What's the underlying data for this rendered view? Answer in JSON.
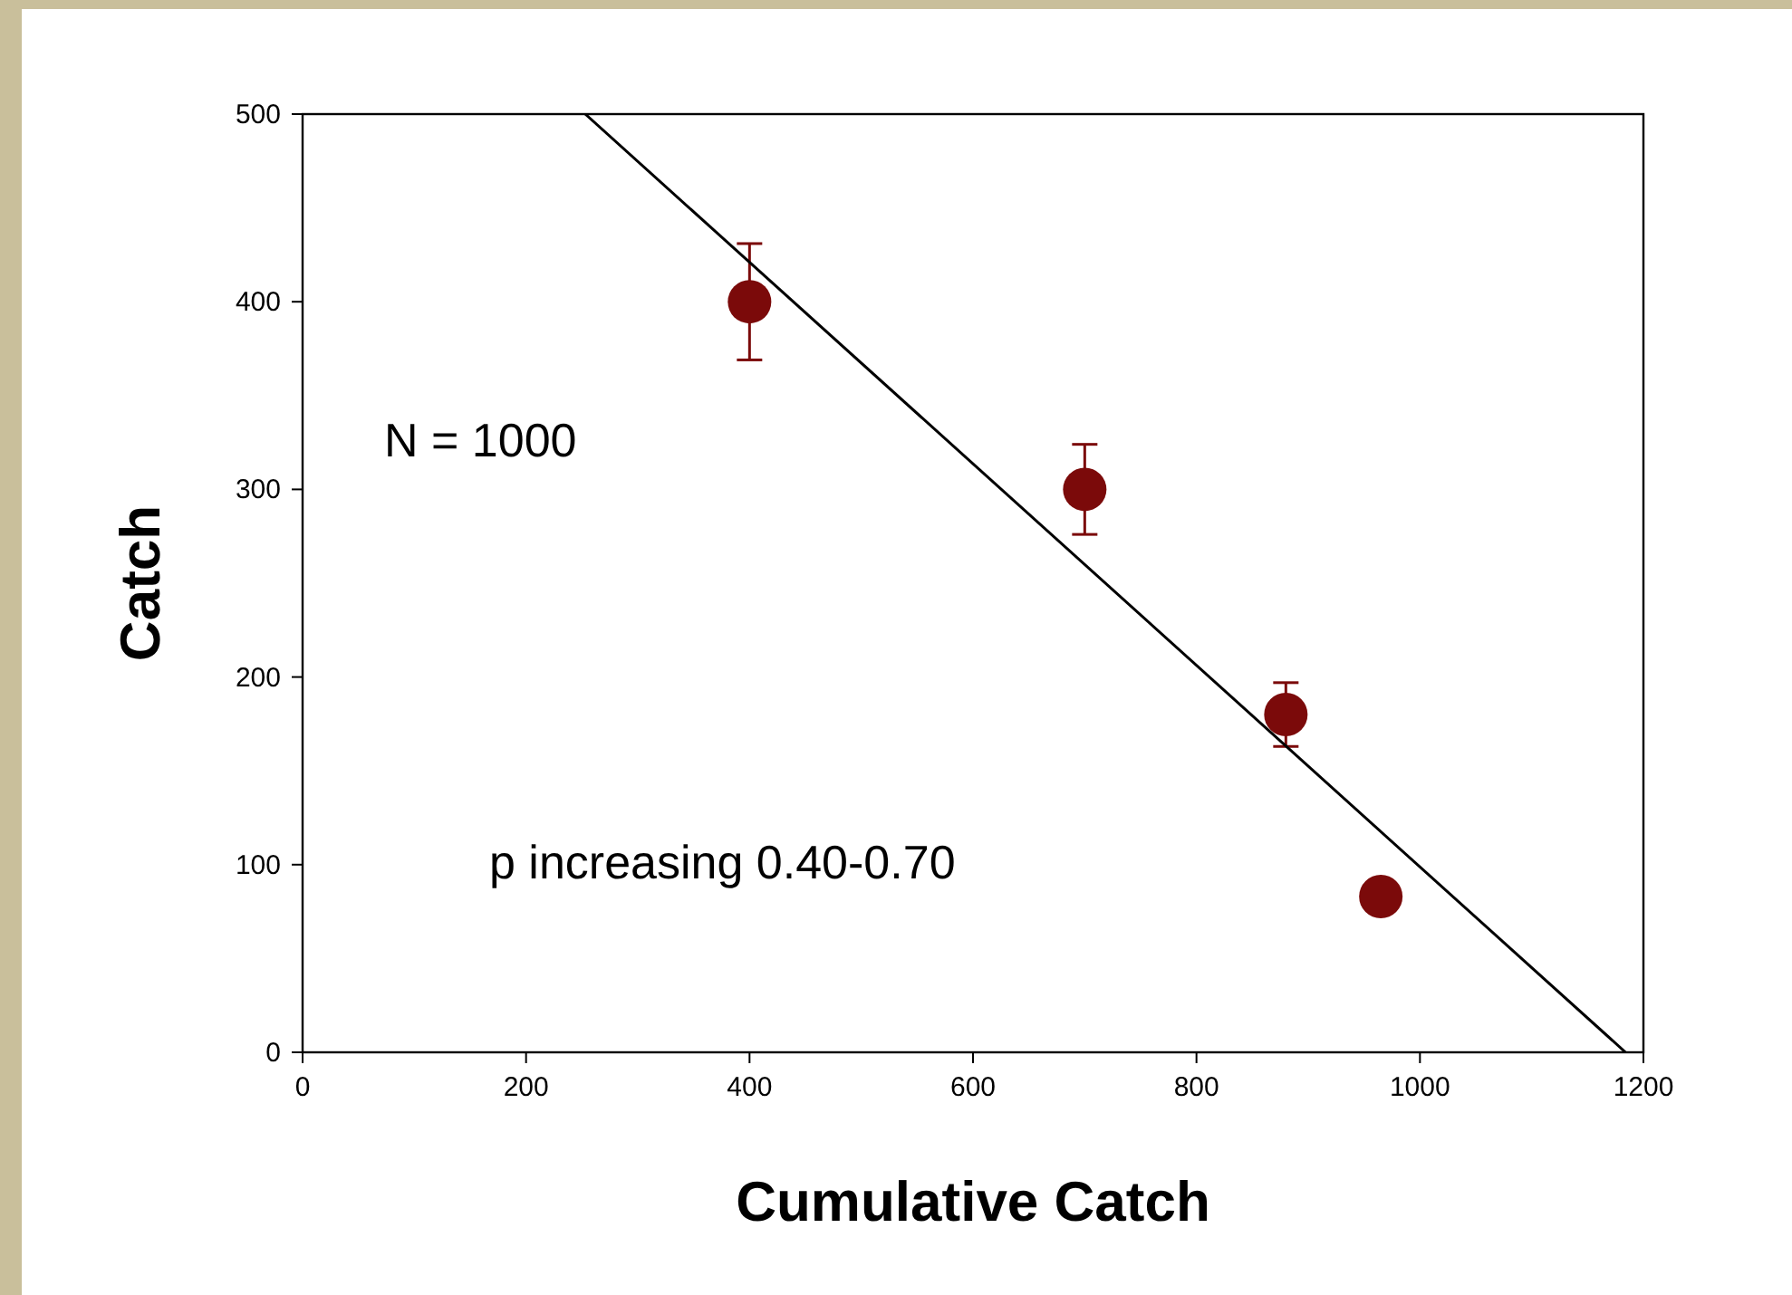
{
  "chart_data": {
    "type": "scatter",
    "xlabel": "Cumulative Catch",
    "ylabel": "Catch",
    "xlim": [
      0,
      1200
    ],
    "ylim": [
      0,
      500
    ],
    "xticks": [
      0,
      200,
      400,
      600,
      800,
      1000,
      1200
    ],
    "yticks": [
      0,
      100,
      200,
      300,
      400,
      500
    ],
    "grid": false,
    "marker": "circle",
    "annotations": [
      "N = 1000",
      "p increasing 0.40-0.70"
    ],
    "series": [
      {
        "color": "#7b0a0a",
        "x": [
          400,
          700,
          880,
          965
        ],
        "values": [
          400,
          300,
          180,
          83
        ],
        "errors": [
          31,
          24,
          17,
          null
        ]
      },
      {
        "type": "line",
        "color": "#000000",
        "x": [
          253,
          1184
        ],
        "values": [
          500,
          0
        ],
        "marker": "none",
        "line_style": "solid"
      }
    ]
  }
}
